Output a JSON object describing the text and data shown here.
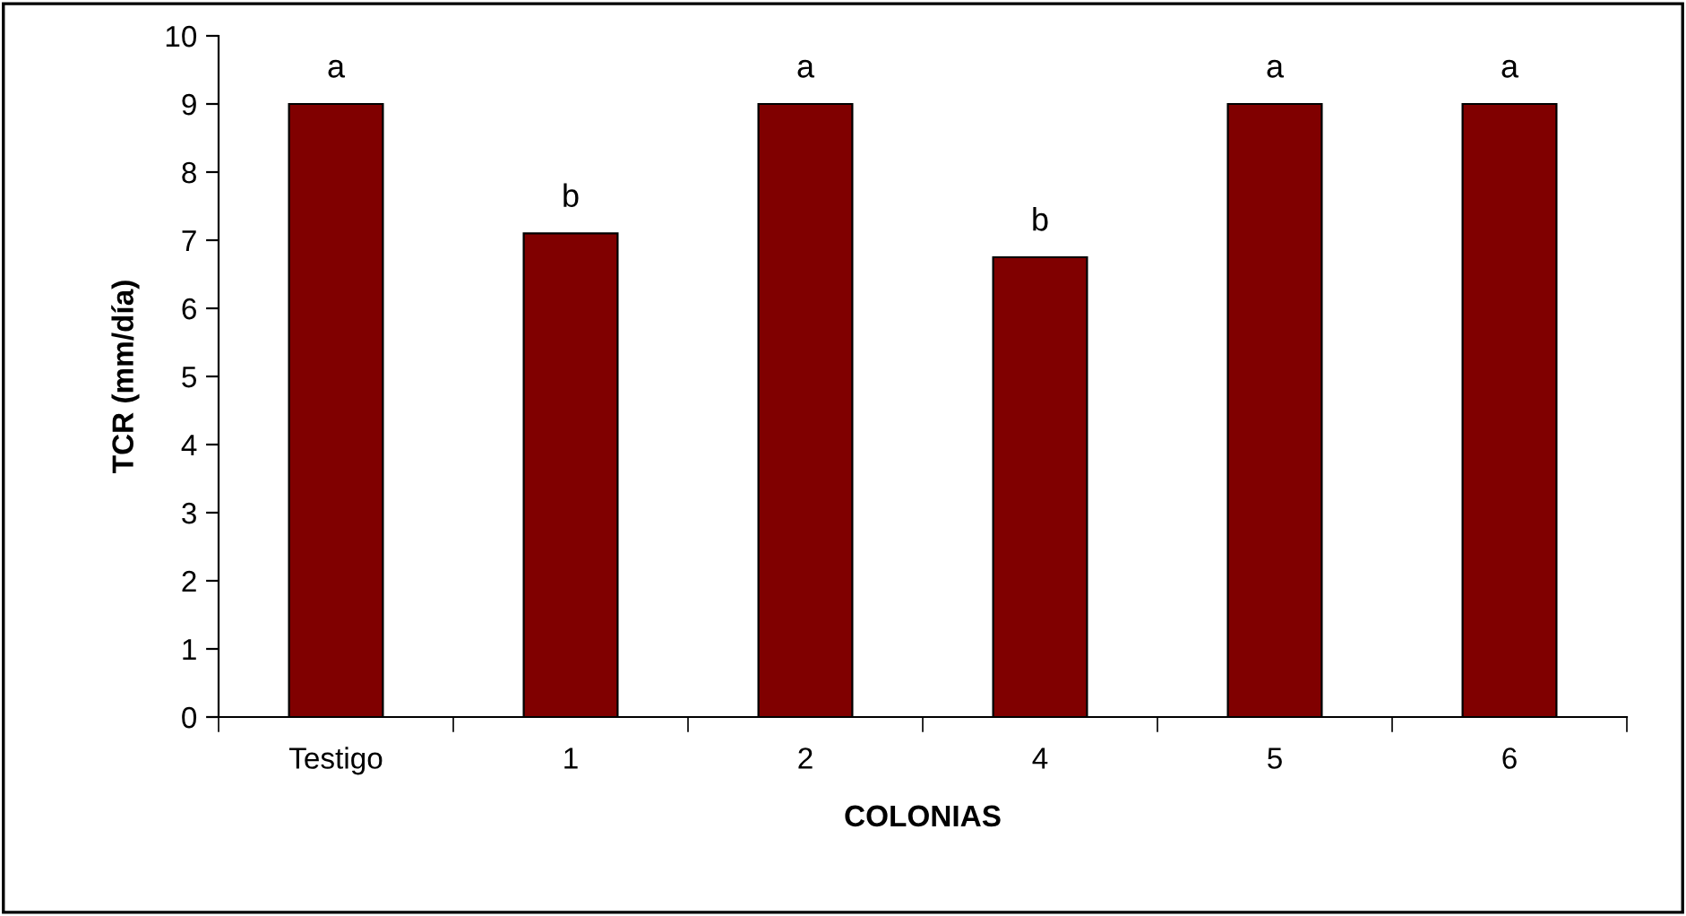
{
  "chart_data": {
    "type": "bar",
    "xlabel": "COLONIAS",
    "ylabel": "TCR (mm/día)",
    "categories": [
      "Testigo",
      "1",
      "2",
      "4",
      "5",
      "6"
    ],
    "values": [
      9,
      7.1,
      9,
      6.75,
      9,
      9
    ],
    "color": "#800000",
    "ylim": [
      0,
      10
    ],
    "yticks": [
      0,
      1,
      2,
      3,
      4,
      5,
      6,
      7,
      8,
      9,
      10
    ],
    "grid": false,
    "annotations": [
      {
        "text": "a",
        "x": "Testigo",
        "y": 9
      },
      {
        "text": "b",
        "x": "1",
        "y": 7.1
      },
      {
        "text": "a",
        "x": "2",
        "y": 9
      },
      {
        "text": "b",
        "x": "4",
        "y": 6.75
      },
      {
        "text": "a",
        "x": "5",
        "y": 9
      },
      {
        "text": "a",
        "x": "6",
        "y": 9
      }
    ]
  }
}
